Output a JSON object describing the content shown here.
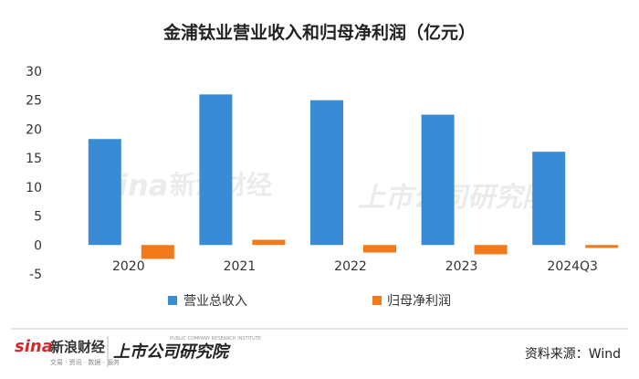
{
  "chart_data": {
    "type": "bar",
    "title": "金浦钛业营业收入和归母净利润（亿元）",
    "categories": [
      "2020",
      "2021",
      "2022",
      "2023",
      "2024Q3"
    ],
    "series": [
      {
        "name": "营业总收入",
        "values": [
          18.3,
          26.0,
          25.0,
          22.5,
          16.1
        ]
      },
      {
        "name": "归母净利润",
        "values": [
          -2.4,
          0.9,
          -1.3,
          -1.6,
          -0.5
        ]
      }
    ],
    "y_ticks": [
      "30",
      "25",
      "20",
      "15",
      "10",
      "5",
      "0",
      "-5"
    ],
    "ylim": [
      -5,
      30
    ],
    "grid": false,
    "legend_position": "bottom"
  },
  "colors": {
    "revenue": "#3a8bd6",
    "profit": "#f07a1c",
    "text": "#333333",
    "watermark": "#e0e0e0",
    "sina_red": "#d9262b"
  },
  "source": "资料来源：Wind",
  "logos": {
    "sina": "sina",
    "sina_cn": "新浪财经",
    "sina_sub": "交易 · 资讯 · 数据 · 服务",
    "institute": "上市公司研究院",
    "institute_en": "PUBLIC COMPANY RESEARCH INSTITUTE"
  }
}
